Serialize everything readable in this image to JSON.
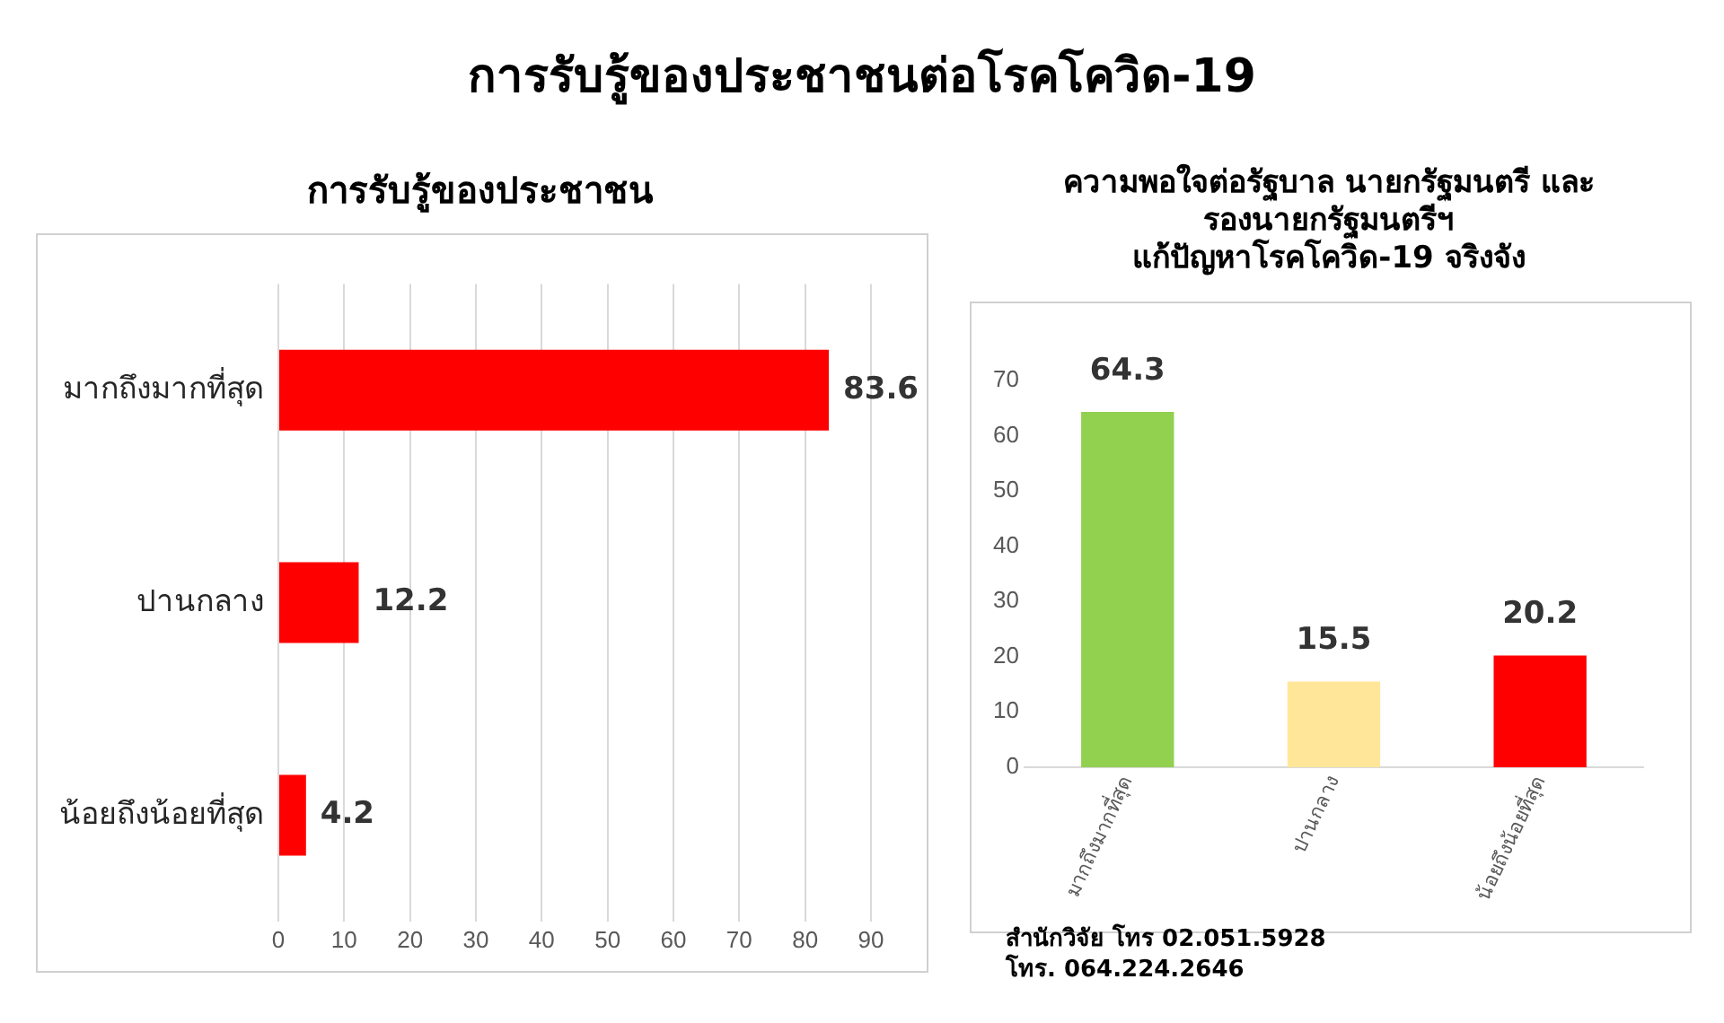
{
  "chart_data": [
    {
      "type": "bar",
      "title": "การรับรู้ของประชาชนต่อโรคโควิด-19",
      "subtitle": "การรับรู้ของประชาชน",
      "orientation": "horizontal",
      "categories": [
        "มากถึงมากที่สุด",
        "ปานกลาง",
        "น้อยถึงน้อยที่สุด"
      ],
      "values": [
        83.6,
        12.2,
        4.2
      ],
      "color": "#ff0000",
      "xlim": [
        0,
        90
      ],
      "xticks": [
        0,
        10,
        20,
        30,
        40,
        50,
        60,
        70,
        80,
        90
      ],
      "grid": "x",
      "data_labels": true
    },
    {
      "type": "bar",
      "title": "ความพอใจต่อรัฐบาล นายกรัฐมนตรี และ\nรองนายกรัฐมนตรีฯ\nแก้ปัญหาโรคโควิด-19 จริงจัง",
      "categories": [
        "มากถึงมากที่สุด",
        "ปานกลาง",
        "น้อยถึงน้อยที่สุด"
      ],
      "values": [
        64.3,
        15.5,
        20.2
      ],
      "colors": [
        "#92d050",
        "#ffe699",
        "#ff0000"
      ],
      "ylim": [
        0,
        70
      ],
      "yticks": [
        0,
        10,
        20,
        30,
        40,
        50,
        60,
        70
      ],
      "grid": false,
      "data_labels": true,
      "annotations": [
        "สำนักวิจัย โทร 02.051.5928",
        "โทร. 064.224.2646"
      ]
    }
  ]
}
